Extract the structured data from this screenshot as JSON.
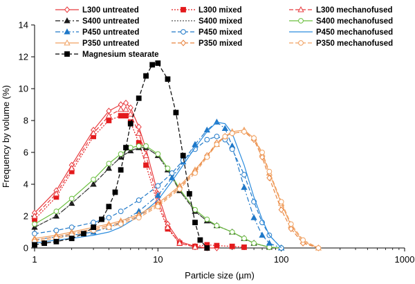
{
  "chart_data": {
    "type": "line",
    "xlabel": "Particle size (µm)",
    "ylabel": "Frequency by volume (%)",
    "x_scale": "log",
    "xlim": [
      1,
      1000
    ],
    "ylim": [
      0,
      14
    ],
    "x_ticks": [
      1,
      10,
      100,
      1000
    ],
    "x_tick_labels": [
      "1",
      "10",
      "100",
      "1000"
    ],
    "y_ticks": [
      0,
      2,
      4,
      6,
      8,
      10,
      12,
      14
    ],
    "y_tick_labels": [
      "0",
      "2",
      "4",
      "6",
      "8",
      "10",
      "12",
      "14"
    ],
    "grid": false,
    "legend_position": "top",
    "series": [
      {
        "name": "L300 untreated",
        "color": "#e8393c",
        "dash": "solid",
        "marker": "diamond-open",
        "x": [
          1,
          1.5,
          2,
          3,
          4,
          5,
          5.5,
          6,
          7,
          8,
          10,
          12,
          15,
          20,
          25,
          30
        ],
        "y": [
          2.2,
          3.6,
          5.2,
          7.4,
          8.6,
          9.0,
          9.1,
          8.8,
          7.6,
          6.2,
          3.4,
          1.5,
          0.4,
          0.1,
          0.0,
          0.0
        ]
      },
      {
        "name": "L300 mixed",
        "color": "#e31a1c",
        "dash": "dot",
        "marker": "square-filled",
        "x": [
          1,
          1.5,
          2,
          3,
          4,
          5,
          5.5,
          6,
          7,
          8,
          10,
          12,
          15,
          20,
          25,
          30,
          40,
          50
        ],
        "y": [
          1.8,
          3.2,
          4.8,
          7.0,
          8.0,
          8.3,
          8.3,
          7.9,
          6.6,
          5.2,
          2.7,
          1.2,
          0.3,
          0.1,
          0.2,
          0.15,
          0.1,
          0.05
        ]
      },
      {
        "name": "L300 mechanofused",
        "color": "#e8393c",
        "dash": "dash",
        "marker": "triangle-open",
        "x": [
          1,
          1.5,
          2,
          3,
          4,
          5,
          5.5,
          6,
          7,
          8,
          10,
          12,
          15,
          20,
          25
        ],
        "y": [
          2.0,
          3.4,
          5.0,
          7.2,
          8.3,
          8.7,
          8.7,
          8.4,
          7.2,
          5.8,
          3.0,
          1.3,
          0.3,
          0.05,
          0.0
        ]
      },
      {
        "name": "S400 untreated",
        "color": "#1a1a1a",
        "dash": "dashdot",
        "marker": "triangle-filled",
        "x": [
          1,
          1.5,
          2,
          3,
          4,
          5,
          6,
          7,
          8,
          10,
          12,
          15,
          20,
          25,
          30,
          40,
          50,
          60,
          80,
          100
        ],
        "y": [
          1.3,
          2.0,
          2.8,
          4.0,
          5.0,
          5.7,
          6.1,
          6.3,
          6.3,
          5.8,
          4.9,
          3.6,
          2.3,
          1.7,
          1.4,
          1.0,
          0.6,
          0.3,
          0.05,
          0.0
        ]
      },
      {
        "name": "S400 mixed",
        "color": "#555555",
        "dash": "dot",
        "marker": "none",
        "x": [
          1,
          1.5,
          2,
          3,
          4,
          5,
          6,
          7,
          8,
          10,
          12,
          15,
          20,
          25,
          30,
          40,
          50,
          60,
          80,
          100
        ],
        "y": [
          1.3,
          2.0,
          2.8,
          4.0,
          5.0,
          5.7,
          6.1,
          6.3,
          6.3,
          5.8,
          4.9,
          3.6,
          2.3,
          1.7,
          1.4,
          1.0,
          0.6,
          0.3,
          0.05,
          0.0
        ]
      },
      {
        "name": "S400 mechanofused",
        "color": "#6abf3e",
        "dash": "solid",
        "marker": "circle-open",
        "x": [
          1,
          1.5,
          2,
          3,
          4,
          5,
          6,
          7,
          8,
          10,
          12,
          15,
          20,
          25,
          30,
          40,
          50,
          60,
          80,
          100
        ],
        "y": [
          1.5,
          2.3,
          3.1,
          4.3,
          5.3,
          5.9,
          6.3,
          6.4,
          6.4,
          5.9,
          5.0,
          3.7,
          2.4,
          1.8,
          1.4,
          1.0,
          0.6,
          0.3,
          0.05,
          0.0
        ]
      },
      {
        "name": "P450 untreated",
        "color": "#1f78c8",
        "dash": "dashdot",
        "marker": "triangle-filled",
        "x": [
          1,
          1.5,
          2,
          3,
          4,
          5,
          7,
          10,
          13,
          16,
          20,
          25,
          30,
          35,
          40,
          50,
          60,
          70,
          80,
          100
        ],
        "y": [
          0.5,
          0.7,
          0.8,
          1.0,
          1.3,
          1.6,
          2.3,
          3.3,
          4.4,
          5.4,
          6.5,
          7.4,
          7.9,
          7.5,
          6.4,
          3.8,
          1.9,
          0.8,
          0.3,
          0.0
        ]
      },
      {
        "name": "P450 mixed",
        "color": "#1f78c8",
        "dash": "dash",
        "marker": "circle-open",
        "x": [
          1,
          1.5,
          2,
          3,
          4,
          5,
          7,
          10,
          13,
          16,
          20,
          25,
          30,
          35,
          40,
          50,
          60,
          70,
          80,
          100
        ],
        "y": [
          0.9,
          1.1,
          1.3,
          1.6,
          1.9,
          2.3,
          3.0,
          3.9,
          4.7,
          5.5,
          6.2,
          6.8,
          7.0,
          6.8,
          6.2,
          4.6,
          2.9,
          1.6,
          0.8,
          0.0
        ]
      },
      {
        "name": "P450 mechanofused",
        "color": "#2b8cde",
        "dash": "solid",
        "marker": "none",
        "x": [
          1,
          1.5,
          2,
          3,
          4,
          5,
          7,
          10,
          13,
          16,
          20,
          25,
          30,
          35,
          40,
          50,
          60,
          70,
          80,
          100
        ],
        "y": [
          0.3,
          0.5,
          0.6,
          0.8,
          1.0,
          1.3,
          2.0,
          3.0,
          4.2,
          5.2,
          6.3,
          7.3,
          7.9,
          7.8,
          7.2,
          5.2,
          3.2,
          1.8,
          0.8,
          0.0
        ]
      },
      {
        "name": "P350 untreated",
        "color": "#f0a060",
        "dash": "solid",
        "marker": "triangle-open",
        "x": [
          1,
          1.5,
          2,
          3,
          4,
          5,
          7,
          10,
          15,
          20,
          25,
          30,
          35,
          40,
          50,
          60,
          70,
          80,
          100,
          120,
          150,
          200
        ],
        "y": [
          0.6,
          0.8,
          1.0,
          1.3,
          1.5,
          1.7,
          2.1,
          2.8,
          3.9,
          4.9,
          5.8,
          6.5,
          7.0,
          7.3,
          7.4,
          6.9,
          5.9,
          4.7,
          2.8,
          1.4,
          0.4,
          0.0
        ]
      },
      {
        "name": "P350 mixed",
        "color": "#e8823c",
        "dash": "dash",
        "marker": "diamond-open",
        "x": [
          1,
          1.5,
          2,
          3,
          4,
          5,
          7,
          10,
          15,
          20,
          25,
          30,
          35,
          40,
          50,
          60,
          70,
          80,
          100,
          120,
          150,
          200
        ],
        "y": [
          0.5,
          0.7,
          0.9,
          1.2,
          1.4,
          1.6,
          2.0,
          2.7,
          3.8,
          4.8,
          5.8,
          6.6,
          7.0,
          7.2,
          7.3,
          6.8,
          5.7,
          4.4,
          2.4,
          1.2,
          0.3,
          0.0
        ]
      },
      {
        "name": "P350 mechanofused",
        "color": "#f0a060",
        "dash": "dash",
        "marker": "circle-open",
        "x": [
          1,
          1.5,
          2,
          3,
          4,
          5,
          7,
          10,
          15,
          20,
          25,
          30,
          35,
          40,
          50,
          60,
          70,
          80,
          100,
          120,
          150,
          200
        ],
        "y": [
          0.4,
          0.6,
          0.8,
          1.1,
          1.3,
          1.5,
          1.9,
          2.6,
          3.7,
          4.7,
          5.7,
          6.5,
          7.0,
          7.2,
          7.3,
          6.9,
          6.0,
          4.8,
          2.9,
          1.5,
          0.5,
          0.0
        ]
      },
      {
        "name": "Magnesium stearate",
        "color": "#000000",
        "dash": "dash",
        "marker": "square-filled",
        "x": [
          1,
          1.2,
          1.5,
          2,
          2.5,
          3,
          3.5,
          4,
          4.5,
          5,
          5.5,
          6,
          7,
          8,
          9,
          10,
          12,
          14,
          16,
          18,
          20,
          22,
          25
        ],
        "y": [
          0.2,
          0.3,
          0.4,
          0.6,
          0.9,
          1.3,
          1.8,
          2.6,
          3.5,
          4.9,
          6.3,
          7.8,
          9.4,
          10.8,
          11.5,
          11.6,
          10.6,
          8.5,
          5.8,
          3.4,
          1.6,
          0.5,
          0.0
        ]
      }
    ]
  }
}
